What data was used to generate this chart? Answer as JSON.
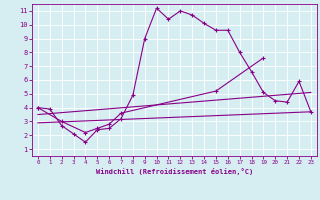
{
  "xlabel": "Windchill (Refroidissement éolien,°C)",
  "background_color": "#d6eef2",
  "grid_color": "#b8d8e0",
  "line_color": "#880088",
  "xlim": [
    -0.5,
    23.5
  ],
  "ylim": [
    0.5,
    11.5
  ],
  "xticks": [
    0,
    1,
    2,
    3,
    4,
    5,
    6,
    7,
    8,
    9,
    10,
    11,
    12,
    13,
    14,
    15,
    16,
    17,
    18,
    19,
    20,
    21,
    22,
    23
  ],
  "yticks": [
    1,
    2,
    3,
    4,
    5,
    6,
    7,
    8,
    9,
    10,
    11
  ],
  "series1_x": [
    0,
    1,
    2,
    3,
    4,
    5,
    6,
    7,
    8,
    9,
    10,
    11,
    12,
    13,
    14,
    15,
    16,
    17,
    18,
    19,
    20,
    21,
    22,
    23
  ],
  "series1_y": [
    4.0,
    3.9,
    2.7,
    2.1,
    1.5,
    2.4,
    2.5,
    3.2,
    4.9,
    9.0,
    11.2,
    10.4,
    11.0,
    10.7,
    10.1,
    9.6,
    9.6,
    8.0,
    6.6,
    5.1,
    4.5,
    4.4,
    5.9,
    3.7
  ],
  "series2_x": [
    0,
    2,
    4,
    5,
    6,
    7,
    15,
    19
  ],
  "series2_y": [
    4.0,
    3.0,
    2.2,
    2.5,
    2.8,
    3.6,
    5.2,
    7.6
  ],
  "series3_x": [
    0,
    23
  ],
  "series3_y": [
    3.5,
    5.1
  ],
  "series4_x": [
    0,
    23
  ],
  "series4_y": [
    2.9,
    3.7
  ]
}
